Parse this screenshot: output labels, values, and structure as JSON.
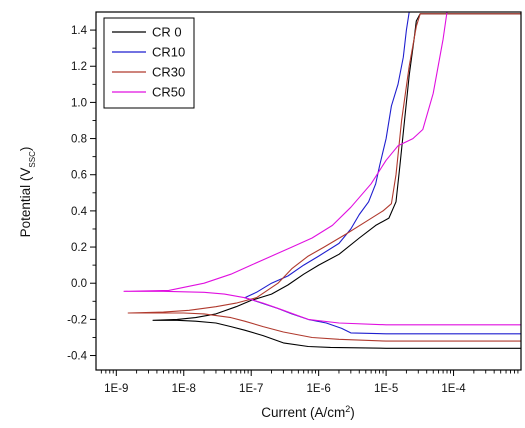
{
  "chart_data": {
    "type": "line",
    "xlabel": "Current (A/cm",
    "xlabel_sup": "2",
    "xlabel_end": ")",
    "ylabel": "Potential (V",
    "ylabel_sub": "SSC",
    "ylabel_end": ")",
    "x_scale": "log",
    "xlim": [
      5e-10,
      0.001
    ],
    "ylim": [
      -0.48,
      1.5
    ],
    "x_ticks": [
      {
        "value": 1e-09,
        "label": "1E-9"
      },
      {
        "value": 1e-08,
        "label": "1E-8"
      },
      {
        "value": 1e-07,
        "label": "1E-7"
      },
      {
        "value": 1e-06,
        "label": "1E-6"
      },
      {
        "value": 1e-05,
        "label": "1E-5"
      },
      {
        "value": 0.0001,
        "label": "1E-4"
      }
    ],
    "y_ticks": [
      {
        "value": -0.4,
        "label": "-0.4"
      },
      {
        "value": -0.2,
        "label": "-0.2"
      },
      {
        "value": 0.0,
        "label": "0.0"
      },
      {
        "value": 0.2,
        "label": "0.2"
      },
      {
        "value": 0.4,
        "label": "0.4"
      },
      {
        "value": 0.6,
        "label": "0.6"
      },
      {
        "value": 0.8,
        "label": "0.8"
      },
      {
        "value": 1.0,
        "label": "1.0"
      },
      {
        "value": 1.2,
        "label": "1.2"
      },
      {
        "value": 1.4,
        "label": "1.4"
      }
    ],
    "grid": false,
    "legend_position": "top-left",
    "series": [
      {
        "name": "CR 0",
        "color": "#000000",
        "points": [
          [
            0.0012,
            -0.36
          ],
          [
            0.0001,
            -0.36
          ],
          [
            1e-05,
            -0.36
          ],
          [
            1.5e-06,
            -0.355
          ],
          [
            7e-07,
            -0.35
          ],
          [
            3e-07,
            -0.33
          ],
          [
            1.5e-07,
            -0.29
          ],
          [
            8e-08,
            -0.26
          ],
          [
            5e-08,
            -0.24
          ],
          [
            3e-08,
            -0.22
          ],
          [
            1.5e-08,
            -0.21
          ],
          [
            8e-09,
            -0.205
          ],
          [
            3.5e-09,
            -0.205
          ],
          [
            8e-09,
            -0.2
          ],
          [
            1.5e-08,
            -0.19
          ],
          [
            3e-08,
            -0.17
          ],
          [
            6e-08,
            -0.13
          ],
          [
            1e-07,
            -0.095
          ],
          [
            2e-07,
            -0.06
          ],
          [
            3.5e-07,
            -0.01
          ],
          [
            6e-07,
            0.05
          ],
          [
            1e-06,
            0.1
          ],
          [
            2e-06,
            0.16
          ],
          [
            4e-06,
            0.25
          ],
          [
            7e-06,
            0.32
          ],
          [
            1.1e-05,
            0.36
          ],
          [
            1.4e-05,
            0.45
          ],
          [
            1.6e-05,
            0.65
          ],
          [
            1.9e-05,
            0.92
          ],
          [
            2.2e-05,
            1.15
          ],
          [
            2.6e-05,
            1.35
          ],
          [
            2.8e-05,
            1.45
          ],
          [
            3.2e-05,
            1.49
          ],
          [
            0.0012,
            1.49
          ]
        ]
      },
      {
        "name": "CR10",
        "color": "#1f1fcf",
        "points": [
          [
            0.0012,
            -0.28
          ],
          [
            0.0001,
            -0.28
          ],
          [
            1e-05,
            -0.28
          ],
          [
            3e-06,
            -0.275
          ],
          [
            2.2e-06,
            -0.25
          ],
          [
            1.3e-06,
            -0.22
          ],
          [
            7e-07,
            -0.2
          ],
          [
            4e-07,
            -0.17
          ],
          [
            2.5e-07,
            -0.14
          ],
          [
            1.2e-07,
            -0.1
          ],
          [
            8e-08,
            -0.08
          ],
          [
            1.2e-07,
            -0.05
          ],
          [
            2e-07,
            0.0
          ],
          [
            3.5e-07,
            0.04
          ],
          [
            6e-07,
            0.1
          ],
          [
            1e-06,
            0.15
          ],
          [
            2e-06,
            0.22
          ],
          [
            3e-06,
            0.3
          ],
          [
            4e-06,
            0.38
          ],
          [
            5.5e-06,
            0.45
          ],
          [
            7e-06,
            0.55
          ],
          [
            8e-06,
            0.65
          ],
          [
            1e-05,
            0.8
          ],
          [
            1.2e-05,
            0.98
          ],
          [
            1.5e-05,
            1.1
          ],
          [
            1.8e-05,
            1.25
          ],
          [
            2e-05,
            1.4
          ],
          [
            2.2e-05,
            1.5
          ]
        ]
      },
      {
        "name": "CR30",
        "color": "#b03a2e",
        "points": [
          [
            0.0012,
            -0.32
          ],
          [
            0.0001,
            -0.32
          ],
          [
            1e-05,
            -0.32
          ],
          [
            2e-06,
            -0.31
          ],
          [
            8e-07,
            -0.3
          ],
          [
            3e-07,
            -0.27
          ],
          [
            1.5e-07,
            -0.24
          ],
          [
            8e-08,
            -0.21
          ],
          [
            5e-08,
            -0.19
          ],
          [
            2e-08,
            -0.17
          ],
          [
            1e-08,
            -0.165
          ],
          [
            1.5e-09,
            -0.165
          ],
          [
            5e-09,
            -0.16
          ],
          [
            1.2e-08,
            -0.15
          ],
          [
            3e-08,
            -0.13
          ],
          [
            6e-08,
            -0.11
          ],
          [
            1.2e-07,
            -0.08
          ],
          [
            2.5e-07,
            0.0
          ],
          [
            4e-07,
            0.08
          ],
          [
            7e-07,
            0.15
          ],
          [
            1.2e-06,
            0.2
          ],
          [
            2.5e-06,
            0.27
          ],
          [
            5e-06,
            0.34
          ],
          [
            9e-06,
            0.4
          ],
          [
            1.2e-05,
            0.44
          ],
          [
            1.4e-05,
            0.6
          ],
          [
            1.7e-05,
            0.9
          ],
          [
            2.2e-05,
            1.2
          ],
          [
            2.8e-05,
            1.42
          ],
          [
            3.2e-05,
            1.49
          ],
          [
            0.0012,
            1.49
          ]
        ]
      },
      {
        "name": "CR50",
        "color": "#e010e0",
        "points": [
          [
            0.0012,
            -0.23
          ],
          [
            0.0001,
            -0.23
          ],
          [
            1e-05,
            -0.23
          ],
          [
            2e-06,
            -0.22
          ],
          [
            7e-07,
            -0.2
          ],
          [
            3e-07,
            -0.15
          ],
          [
            1.5e-07,
            -0.11
          ],
          [
            8e-08,
            -0.08
          ],
          [
            4e-08,
            -0.06
          ],
          [
            2e-08,
            -0.05
          ],
          [
            5e-09,
            -0.045
          ],
          [
            1.3e-09,
            -0.045
          ],
          [
            6e-09,
            -0.04
          ],
          [
            2e-08,
            0.0
          ],
          [
            5e-08,
            0.05
          ],
          [
            1e-07,
            0.1
          ],
          [
            2e-07,
            0.15
          ],
          [
            4e-07,
            0.2
          ],
          [
            8e-07,
            0.25
          ],
          [
            1.6e-06,
            0.32
          ],
          [
            3e-06,
            0.42
          ],
          [
            6e-06,
            0.55
          ],
          [
            1e-05,
            0.68
          ],
          [
            1.5e-05,
            0.76
          ],
          [
            2.5e-05,
            0.8
          ],
          [
            3.5e-05,
            0.85
          ],
          [
            5e-05,
            1.05
          ],
          [
            7e-05,
            1.35
          ],
          [
            8e-05,
            1.5
          ]
        ]
      }
    ]
  }
}
